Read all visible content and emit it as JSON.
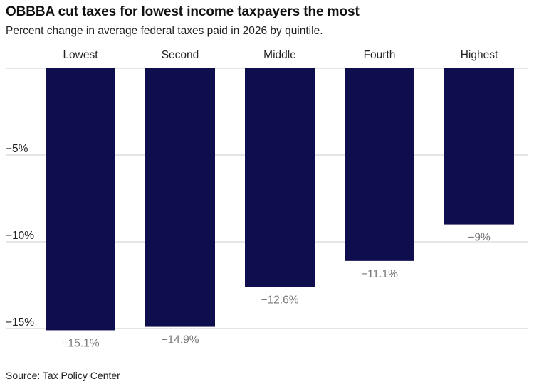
{
  "title": "OBBBA cut taxes for lowest income taxpayers the most",
  "subtitle": "Percent change in average federal taxes paid in 2026 by quintile.",
  "source": "Source: Tax Policy Center",
  "colors": {
    "bar": "#0e0e4f",
    "gridline": "#cccccc",
    "data_label": "#777777"
  },
  "chart_data": {
    "type": "bar",
    "categories": [
      "Lowest",
      "Second",
      "Middle",
      "Fourth",
      "Highest"
    ],
    "values": [
      -15.1,
      -14.9,
      -12.6,
      -11.1,
      -9
    ],
    "data_labels": [
      "−15.1%",
      "−14.9%",
      "−12.6%",
      "−11.1%",
      "−9%"
    ],
    "title": "OBBBA cut taxes for lowest income taxpayers the most",
    "subtitle": "Percent change in average federal taxes paid in 2026 by quintile.",
    "xlabel": "",
    "ylabel": "",
    "ylim": [
      -15,
      0
    ],
    "yticks": [
      -5,
      -10,
      -15
    ],
    "ytick_labels": [
      "−5%",
      "−10%",
      "−15%"
    ],
    "category_labels_position": "top",
    "grid": true
  }
}
